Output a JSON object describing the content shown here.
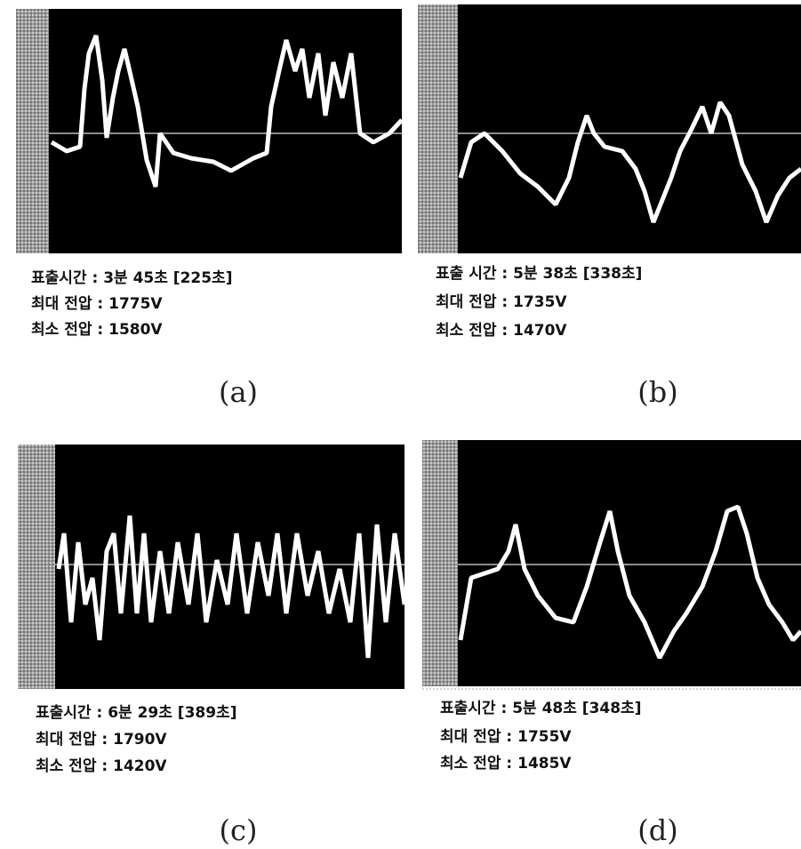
{
  "panels": [
    {
      "caption": "(a)",
      "lines": [
        "표출시간 : 3분 45초 [225초]",
        "최대 전압 : 1775V",
        "최소 전압 : 1580V"
      ]
    },
    {
      "caption": "(b)",
      "lines": [
        "표출 시간 : 5분 38초 [338초]",
        "최대 전압 : 1735V",
        "최소 전압 : 1470V"
      ]
    },
    {
      "caption": "(c)",
      "lines": [
        "표출시간 : 6분 29초 [389초]",
        "최대 전압 : 1790V",
        "최소 전압 : 1420V"
      ]
    },
    {
      "caption": "(d)",
      "lines": [
        "표출시간 : 5분 48초 [348초]",
        "최대 전압 : 1755V",
        "최소 전압 : 1485V"
      ]
    }
  ]
}
